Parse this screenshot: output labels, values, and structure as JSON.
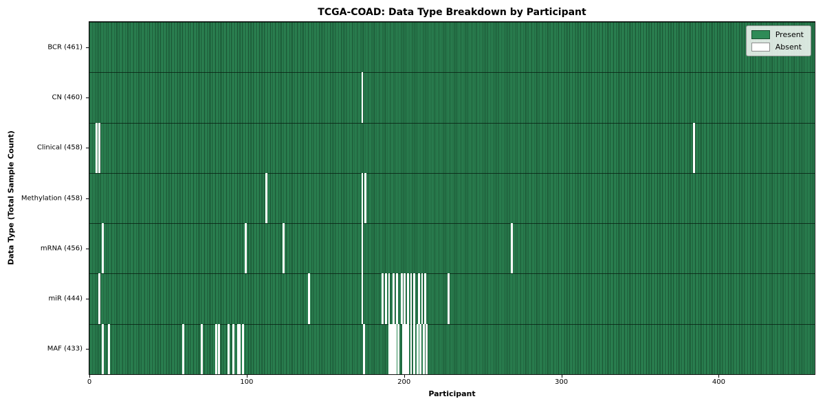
{
  "colors": {
    "present": "#2e8b57",
    "present_edge": "#16492c",
    "absent": "#ffffff",
    "plot_border": "#141414",
    "legend_bg": "rgba(255,255,255,0.82)",
    "legend_border": "#999999"
  },
  "chart_data": {
    "type": "heatmap",
    "title": "TCGA-COAD: Data Type Breakdown by Participant",
    "xlabel": "Participant",
    "ylabel": "Data Type (Total Sample Count)",
    "x_ticks": [
      0,
      100,
      200,
      300,
      400
    ],
    "x_range": [
      0,
      461
    ],
    "n_participants": 461,
    "grid": false,
    "legend_position": "upper right",
    "legend": {
      "present": "Present",
      "absent": "Absent"
    },
    "rows": [
      {
        "data_type": "BCR",
        "label": "BCR (461)",
        "total_samples": 461,
        "absent_participants": []
      },
      {
        "data_type": "CN",
        "label": "CN (460)",
        "total_samples": 460,
        "absent_participants": [
          173
        ]
      },
      {
        "data_type": "Clinical",
        "label": "Clinical (458)",
        "total_samples": 458,
        "absent_participants": [
          4,
          6,
          384
        ]
      },
      {
        "data_type": "Methylation",
        "label": "Methylation (458)",
        "total_samples": 458,
        "absent_participants": [
          112,
          173,
          175
        ]
      },
      {
        "data_type": "mRNA",
        "label": "mRNA (456)",
        "total_samples": 456,
        "absent_participants": [
          8,
          99,
          123,
          173,
          268
        ]
      },
      {
        "data_type": "miR",
        "label": "miR (444)",
        "total_samples": 444,
        "absent_participants": [
          6,
          139,
          173,
          186,
          188,
          190,
          193,
          195,
          198,
          200,
          202,
          204,
          206,
          209,
          211,
          213,
          228
        ]
      },
      {
        "data_type": "MAF",
        "label": "MAF (433)",
        "total_samples": 433,
        "absent_participants": [
          8,
          12,
          59,
          71,
          80,
          82,
          88,
          91,
          94,
          95,
          97,
          174,
          190,
          191,
          192,
          193,
          194,
          196,
          199,
          200,
          201,
          202,
          204,
          206,
          208,
          210,
          212,
          214
        ]
      }
    ]
  }
}
